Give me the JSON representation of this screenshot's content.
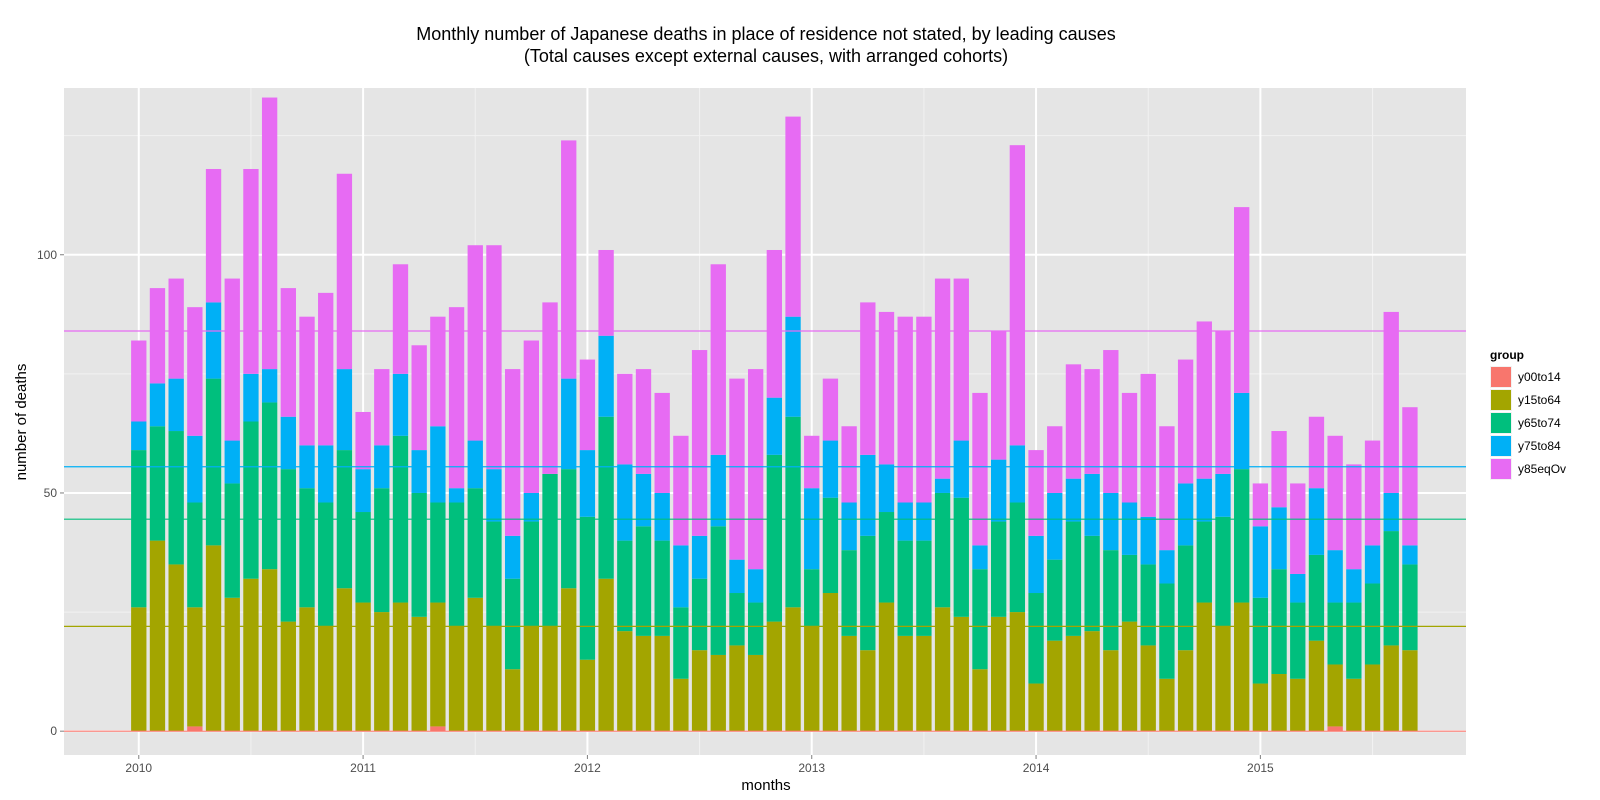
{
  "chart_data": {
    "type": "bar",
    "stacked": true,
    "title": "Monthly number of Japanese deaths in place of residence not stated, by leading causes",
    "subtitle": "(Total causes except external causes, with arranged cohorts)",
    "xlabel": "months",
    "ylabel": "number of deaths",
    "xlim": [
      "2009-09",
      "2015-12"
    ],
    "ylim": [
      -5,
      135
    ],
    "x_ticks": [
      "2010",
      "2011",
      "2012",
      "2013",
      "2014",
      "2015"
    ],
    "y_ticks": [
      0,
      50,
      100
    ],
    "grid": true,
    "legend": {
      "title": "group",
      "position": "right"
    },
    "x": [
      "2010-01",
      "2010-02",
      "2010-03",
      "2010-04",
      "2010-05",
      "2010-06",
      "2010-07",
      "2010-08",
      "2010-09",
      "2010-10",
      "2010-11",
      "2010-12",
      "2011-01",
      "2011-02",
      "2011-03",
      "2011-04",
      "2011-05",
      "2011-06",
      "2011-07",
      "2011-08",
      "2011-09",
      "2011-10",
      "2011-11",
      "2011-12",
      "2012-01",
      "2012-02",
      "2012-03",
      "2012-04",
      "2012-05",
      "2012-06",
      "2012-07",
      "2012-08",
      "2012-09",
      "2012-10",
      "2012-11",
      "2012-12",
      "2013-01",
      "2013-02",
      "2013-03",
      "2013-04",
      "2013-05",
      "2013-06",
      "2013-07",
      "2013-08",
      "2013-09",
      "2013-10",
      "2013-11",
      "2013-12",
      "2014-01",
      "2014-02",
      "2014-03",
      "2014-04",
      "2014-05",
      "2014-06",
      "2014-07",
      "2014-08",
      "2014-09",
      "2014-10",
      "2014-11",
      "2014-12",
      "2015-01",
      "2015-02",
      "2015-03",
      "2015-04",
      "2015-05",
      "2015-06",
      "2015-07",
      "2015-08",
      "2015-09"
    ],
    "series": [
      {
        "name": "y00to14",
        "color": "#F8766D",
        "values": [
          0,
          0,
          0,
          1,
          0,
          0,
          0,
          0,
          0,
          0,
          0,
          0,
          0,
          0,
          0,
          0,
          1,
          0,
          0,
          0,
          0,
          0,
          0,
          0,
          0,
          0,
          0,
          0,
          0,
          0,
          0,
          0,
          0,
          0,
          0,
          0,
          0,
          0,
          0,
          0,
          0,
          0,
          0,
          0,
          0,
          0,
          0,
          0,
          0,
          0,
          0,
          0,
          0,
          0,
          0,
          0,
          0,
          0,
          0,
          0,
          0,
          0,
          0,
          0,
          1,
          0,
          0,
          0,
          0
        ]
      },
      {
        "name": "y15to64",
        "color": "#A3A500",
        "values": [
          26,
          40,
          35,
          25,
          39,
          28,
          32,
          34,
          23,
          26,
          22,
          30,
          27,
          25,
          27,
          24,
          26,
          22,
          28,
          22,
          13,
          22,
          22,
          30,
          15,
          32,
          21,
          20,
          20,
          11,
          17,
          16,
          18,
          16,
          23,
          26,
          22,
          29,
          20,
          17,
          27,
          20,
          20,
          26,
          24,
          13,
          24,
          25,
          10,
          19,
          20,
          21,
          17,
          23,
          18,
          11,
          17,
          27,
          22,
          27,
          10,
          12,
          11,
          19,
          13,
          11,
          14,
          18,
          17
        ]
      },
      {
        "name": "y65to74",
        "color": "#00BF7D",
        "values": [
          33,
          24,
          28,
          22,
          35,
          24,
          33,
          35,
          32,
          25,
          26,
          29,
          19,
          26,
          35,
          26,
          21,
          26,
          23,
          22,
          19,
          22,
          32,
          25,
          30,
          34,
          19,
          23,
          20,
          15,
          15,
          27,
          11,
          11,
          35,
          40,
          12,
          20,
          18,
          24,
          19,
          20,
          20,
          24,
          25,
          21,
          20,
          23,
          19,
          17,
          24,
          20,
          21,
          14,
          17,
          20,
          22,
          17,
          23,
          28,
          18,
          22,
          16,
          18,
          13,
          16,
          17,
          24,
          18
        ]
      },
      {
        "name": "y75to84",
        "color": "#00B0F6",
        "values": [
          6,
          9,
          11,
          14,
          16,
          9,
          10,
          7,
          11,
          9,
          12,
          17,
          9,
          9,
          13,
          9,
          16,
          3,
          10,
          11,
          9,
          6,
          0,
          19,
          14,
          17,
          16,
          11,
          10,
          13,
          9,
          15,
          7,
          7,
          12,
          21,
          17,
          12,
          10,
          17,
          10,
          8,
          8,
          3,
          12,
          5,
          13,
          12,
          12,
          14,
          9,
          13,
          12,
          11,
          10,
          7,
          13,
          9,
          9,
          16,
          15,
          13,
          6,
          14,
          11,
          7,
          8,
          8,
          4
        ]
      },
      {
        "name": "y85eqOv",
        "color": "#E76BF3",
        "values": [
          17,
          20,
          21,
          27,
          28,
          34,
          43,
          57,
          27,
          27,
          32,
          41,
          12,
          16,
          23,
          22,
          23,
          38,
          41,
          47,
          35,
          32,
          36,
          50,
          19,
          18,
          19,
          22,
          21,
          23,
          39,
          40,
          38,
          42,
          31,
          42,
          11,
          13,
          16,
          32,
          32,
          39,
          39,
          42,
          34,
          32,
          27,
          63,
          18,
          14,
          24,
          22,
          30,
          23,
          30,
          26,
          26,
          33,
          30,
          39,
          9,
          16,
          19,
          15,
          24,
          22,
          22,
          38,
          29
        ]
      }
    ],
    "hlines": [
      {
        "value": 0,
        "color": "#F8766D"
      },
      {
        "value": 22,
        "color": "#A3A500"
      },
      {
        "value": 44.5,
        "color": "#00BF7D"
      },
      {
        "value": 55.5,
        "color": "#00B0F6"
      },
      {
        "value": 84,
        "color": "#E76BF3"
      }
    ],
    "background": "#E5E5E5",
    "grid_color": "#FFFFFF"
  }
}
